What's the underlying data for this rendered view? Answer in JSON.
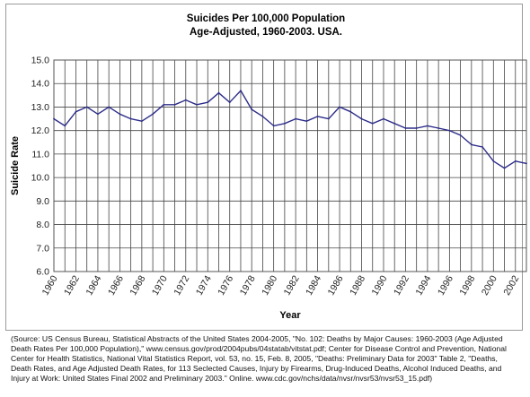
{
  "chart_data": {
    "type": "line",
    "title": "Suicides Per 100,000 Population",
    "subtitle": "Age-Adjusted, 1960-2003. USA.",
    "xlabel": "Year",
    "ylabel": "Suicide Rate",
    "ylim": [
      6.0,
      15.0
    ],
    "y_ticks": [
      "6.0",
      "7.0",
      "8.0",
      "9.0",
      "10.0",
      "11.0",
      "12.0",
      "13.0",
      "14.0",
      "15.0"
    ],
    "x_tick_labels": [
      "1960",
      "1962",
      "1964",
      "1966",
      "1968",
      "1970",
      "1972",
      "1974",
      "1976",
      "1978",
      "1980",
      "1982",
      "1984",
      "1986",
      "1988",
      "1990",
      "1992",
      "1994",
      "1996",
      "1998",
      "2000",
      "2002"
    ],
    "grid": "major on both axes",
    "legend": "none",
    "line_color": "#2e2e8a",
    "x": [
      1960,
      1961,
      1962,
      1963,
      1964,
      1965,
      1966,
      1967,
      1968,
      1969,
      1970,
      1971,
      1972,
      1973,
      1974,
      1975,
      1976,
      1977,
      1978,
      1979,
      1980,
      1981,
      1982,
      1983,
      1984,
      1985,
      1986,
      1987,
      1988,
      1989,
      1990,
      1991,
      1992,
      1993,
      1994,
      1995,
      1996,
      1997,
      1998,
      1999,
      2000,
      2001,
      2002,
      2003
    ],
    "series": [
      {
        "values": [
          12.5,
          12.2,
          12.8,
          13.0,
          12.7,
          13.0,
          12.7,
          12.5,
          12.4,
          12.7,
          13.1,
          13.1,
          13.3,
          13.1,
          13.2,
          13.6,
          13.2,
          13.7,
          12.9,
          12.6,
          12.2,
          12.3,
          12.5,
          12.4,
          12.6,
          12.5,
          13.0,
          12.8,
          12.5,
          12.3,
          12.5,
          12.3,
          12.1,
          12.1,
          12.2,
          12.1,
          12.0,
          11.8,
          11.4,
          11.3,
          10.7,
          10.4,
          10.7,
          10.6
        ]
      }
    ]
  },
  "source_note": "(Source: US Census Bureau, Statistical Abstracts of the United States 2004-2005, \"No. 102: Deaths by Major Causes: 1960-2003 (Age Adjusted Death Rates Per 100,000 Population),\" www.census.gov/prod/2004pubs/04statab/vitstat.pdf; Center for Disease Control and Prevention, National Center for Health Statistics, National Vital Statistics Report, vol. 53, no. 15, Feb. 8, 2005, \"Deaths: Preliminary Data for 2003\" Table 2, \"Deaths, Death Rates, and Age Adjusted Death Rates, for 113 Seclected Causes, Injury by Firearms, Drug-Induced Deaths, Alcohol Induced Deaths, and Injury at Work: United States Final 2002 and Preliminary 2003.\" Online. www.cdc.gov/nchs/data/nvsr/nvsr53/nvsr53_15.pdf)"
}
